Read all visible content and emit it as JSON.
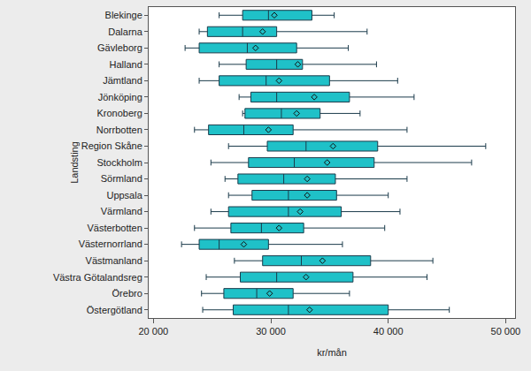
{
  "chart_data": {
    "type": "box",
    "orientation": "horizontal",
    "xlabel": "kr/mån",
    "ylabel": "Landsting",
    "categories": [
      "Blekinge",
      "Dalarna",
      "Gävleborg",
      "Halland",
      "Jämtland",
      "Jönköping",
      "Kronoberg",
      "Norrbotten",
      "Region Skåne",
      "Stockholm",
      "Sörmland",
      "Uppsala",
      "Värmland",
      "Västerbotten",
      "Västernorrland",
      "Västmanland",
      "Västra Götalandsreg",
      "Örebro",
      "Östergötland"
    ],
    "min": [
      25600,
      23900,
      22700,
      25600,
      23900,
      27300,
      27600,
      23500,
      26400,
      24900,
      26100,
      26400,
      24900,
      23500,
      22400,
      26900,
      24500,
      24100,
      24200
    ],
    "q1": [
      27600,
      24600,
      23900,
      27900,
      25600,
      28300,
      27800,
      24700,
      29700,
      28100,
      27200,
      28400,
      26400,
      26600,
      23900,
      29300,
      27400,
      26000,
      26800
    ],
    "median": [
      29800,
      27600,
      28000,
      30500,
      29600,
      30500,
      30900,
      27700,
      33000,
      32000,
      31100,
      31500,
      31500,
      29200,
      25600,
      32600,
      30500,
      28800,
      31500
    ],
    "q3": [
      33500,
      30500,
      32200,
      32700,
      35000,
      36700,
      34200,
      31900,
      39100,
      38800,
      35500,
      35600,
      36000,
      32800,
      29800,
      38500,
      37000,
      31900,
      40000
    ],
    "max": [
      35400,
      38200,
      36600,
      39000,
      40800,
      42200,
      37600,
      41600,
      48300,
      47100,
      41600,
      40000,
      41000,
      39700,
      36100,
      43800,
      43300,
      36700,
      45200
    ],
    "mean": [
      30300,
      29300,
      28700,
      32300,
      30700,
      33700,
      32200,
      29800,
      35300,
      34800,
      33100,
      33100,
      32500,
      30700,
      27700,
      34400,
      33000,
      29900,
      33300
    ],
    "xlim": [
      19600,
      50800
    ],
    "xticks": [
      {
        "value": 20000,
        "label": "20 000"
      },
      {
        "value": 30000,
        "label": "30 000"
      },
      {
        "value": 40000,
        "label": "40 000"
      },
      {
        "value": 50000,
        "label": "50 000"
      }
    ],
    "color": "#1fc1c8",
    "marker": "diamond-open",
    "grid": false
  }
}
